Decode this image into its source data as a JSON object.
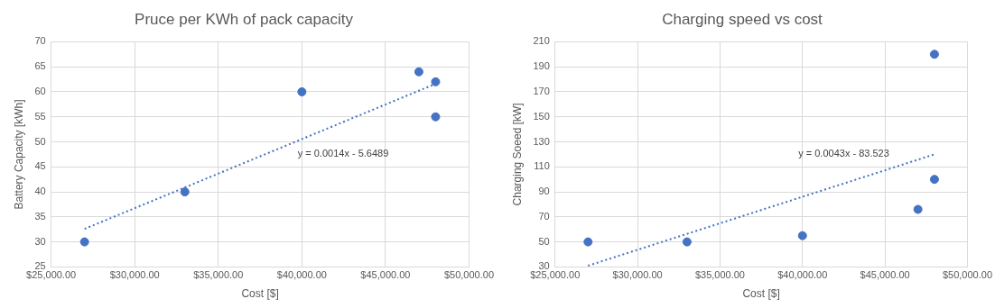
{
  "chart_data": [
    {
      "type": "scatter",
      "title": "Pruce per KWh of pack capacity",
      "xlabel": "Cost [$]",
      "ylabel": "Battery Capacity [kWh]",
      "grid": true,
      "xlim": [
        25000,
        50000
      ],
      "xticks": [
        {
          "value": 25000,
          "label": "$25,000.00"
        },
        {
          "value": 30000,
          "label": "$30,000.00"
        },
        {
          "value": 35000,
          "label": "$35,000.00"
        },
        {
          "value": 40000,
          "label": "$40,000.00"
        },
        {
          "value": 45000,
          "label": "$45,000.00"
        },
        {
          "value": 50000,
          "label": "$50,000.00"
        }
      ],
      "ylim": [
        25,
        70
      ],
      "yticks": [
        25,
        30,
        35,
        40,
        45,
        50,
        55,
        60,
        65,
        70
      ],
      "series": [
        {
          "type": "scatter",
          "color": "#4472c4",
          "marker": "circle",
          "x": [
            27000,
            33000,
            40000,
            47000,
            48000,
            48000
          ],
          "values": [
            30,
            40,
            60,
            64,
            62,
            55
          ]
        },
        {
          "type": "line",
          "color": "#4472c4",
          "marker": "none",
          "line_style": "dotted",
          "x": [
            27000,
            48000
          ],
          "values": [
            32.6,
            61.6
          ]
        }
      ],
      "annotations": [
        "y = 0.0014x - 5.6489"
      ]
    },
    {
      "type": "scatter",
      "title": "Charging speed vs cost",
      "xlabel": "Cost [$]",
      "ylabel": "Charging Soeed [kW]",
      "grid": true,
      "xlim": [
        25000,
        50000
      ],
      "xticks": [
        {
          "value": 25000,
          "label": "$25,000.00"
        },
        {
          "value": 30000,
          "label": "$30,000.00"
        },
        {
          "value": 35000,
          "label": "$35,000.00"
        },
        {
          "value": 40000,
          "label": "$40,000.00"
        },
        {
          "value": 45000,
          "label": "$45,000.00"
        },
        {
          "value": 50000,
          "label": "$50,000.00"
        }
      ],
      "ylim": [
        30,
        210
      ],
      "yticks": [
        30,
        50,
        70,
        90,
        110,
        130,
        150,
        170,
        190,
        210
      ],
      "series": [
        {
          "type": "scatter",
          "color": "#4472c4",
          "marker": "circle",
          "x": [
            27000,
            33000,
            40000,
            47000,
            48000,
            48000
          ],
          "values": [
            50,
            50,
            55,
            76,
            200,
            100
          ]
        },
        {
          "type": "line",
          "color": "#4472c4",
          "marker": "none",
          "line_style": "dotted",
          "x": [
            27000,
            48000
          ],
          "values": [
            31,
            120
          ]
        }
      ],
      "annotations": [
        "y = 0.0043x - 83.523"
      ]
    }
  ]
}
